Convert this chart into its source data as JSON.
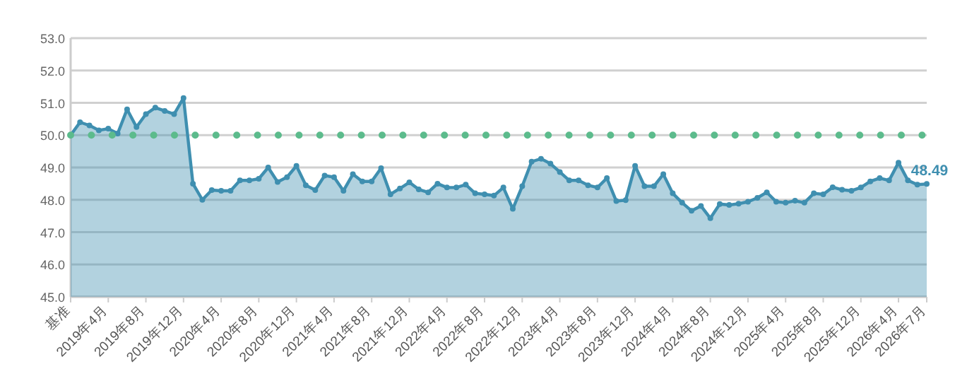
{
  "chart_data": {
    "type": "area",
    "categories": [
      "基准",
      null,
      null,
      null,
      "2019年4月",
      null,
      null,
      null,
      "2019年8月",
      null,
      null,
      null,
      "2019年12月",
      null,
      null,
      null,
      "2020年4月",
      null,
      null,
      null,
      "2020年8月",
      null,
      null,
      null,
      "2020年12月",
      null,
      null,
      null,
      "2021年4月",
      null,
      null,
      null,
      "2021年8月",
      null,
      null,
      null,
      "2021年12月",
      null,
      null,
      null,
      "2022年4月",
      null,
      null,
      null,
      "2022年8月",
      null,
      null,
      null,
      "2022年12月",
      null,
      null,
      null,
      "2023年4月",
      null,
      null,
      null,
      "2023年8月",
      null,
      null,
      null,
      "2023年12月",
      null,
      null,
      null,
      "2024年4月",
      null,
      null,
      null,
      "2024年8月",
      null,
      null,
      null,
      "2024年12月",
      null,
      null,
      null,
      "2025年4月",
      null,
      null,
      null,
      "2025年8月",
      null,
      null,
      null,
      "2025年12月",
      null,
      null,
      null,
      "2026年4月",
      null,
      null,
      "2026年7月"
    ],
    "series": [
      {
        "color": "#3f8fb0",
        "values": [
          50.0,
          50.4,
          50.3,
          50.15,
          50.2,
          50.05,
          50.8,
          50.25,
          50.65,
          50.85,
          50.75,
          50.65,
          51.15,
          48.5,
          48.0,
          48.3,
          48.28,
          48.28,
          48.6,
          48.6,
          48.65,
          49.0,
          48.55,
          48.7,
          49.05,
          48.45,
          48.3,
          48.75,
          48.7,
          48.28,
          48.79,
          48.57,
          48.57,
          48.98,
          48.17,
          48.35,
          48.54,
          48.32,
          48.23,
          48.5,
          48.38,
          48.38,
          48.47,
          48.2,
          48.17,
          48.13,
          48.38,
          47.72,
          48.42,
          49.18,
          49.27,
          49.12,
          48.86,
          48.6,
          48.6,
          48.45,
          48.38,
          48.67,
          47.96,
          47.99,
          49.05,
          48.42,
          48.42,
          48.79,
          48.2,
          47.91,
          47.66,
          47.81,
          47.43,
          47.87,
          47.84,
          47.88,
          47.94,
          48.06,
          48.23,
          47.94,
          47.91,
          47.97,
          47.91,
          48.2,
          48.17,
          48.39,
          48.31,
          48.28,
          48.38,
          48.57,
          48.67,
          48.6,
          49.15,
          48.6,
          48.47,
          48.49
        ],
        "value_labels": [
          null,
          null,
          null,
          null,
          null,
          null,
          null,
          null,
          null,
          null,
          null,
          null,
          null,
          null,
          null,
          null,
          null,
          null,
          null,
          null,
          null,
          null,
          null,
          null,
          null,
          null,
          null,
          null,
          null,
          null,
          null,
          null,
          null,
          null,
          null,
          null,
          null,
          null,
          null,
          null,
          null,
          null,
          null,
          null,
          null,
          null,
          null,
          null,
          null,
          null,
          null,
          null,
          null,
          null,
          null,
          null,
          null,
          null,
          null,
          null,
          null,
          null,
          null,
          null,
          null,
          null,
          null,
          null,
          null,
          null,
          null,
          null,
          null,
          null,
          null,
          null,
          null,
          null,
          null,
          null,
          null,
          null,
          null,
          null,
          null,
          null,
          null,
          null,
          null,
          null,
          null,
          "48.49"
        ]
      }
    ],
    "ylim": [
      45,
      53
    ],
    "yticks": [
      {
        "value": 45,
        "label": "45.0"
      },
      {
        "value": 46,
        "label": "46.0"
      },
      {
        "value": 47,
        "label": "47.0"
      },
      {
        "value": 48,
        "label": "48.0"
      },
      {
        "value": 49,
        "label": "49.0"
      },
      {
        "value": 50,
        "label": "50.0"
      },
      {
        "value": 51,
        "label": "51.0"
      },
      {
        "value": 52,
        "label": "52.0"
      },
      {
        "value": 53,
        "label": "53.0"
      }
    ],
    "grid": "y",
    "marker": "circle",
    "line_style": "solid",
    "ref_lines": [
      {
        "axis": "y",
        "value": 50,
        "color": "#5cbb8c",
        "line_style": "dotted"
      }
    ]
  }
}
